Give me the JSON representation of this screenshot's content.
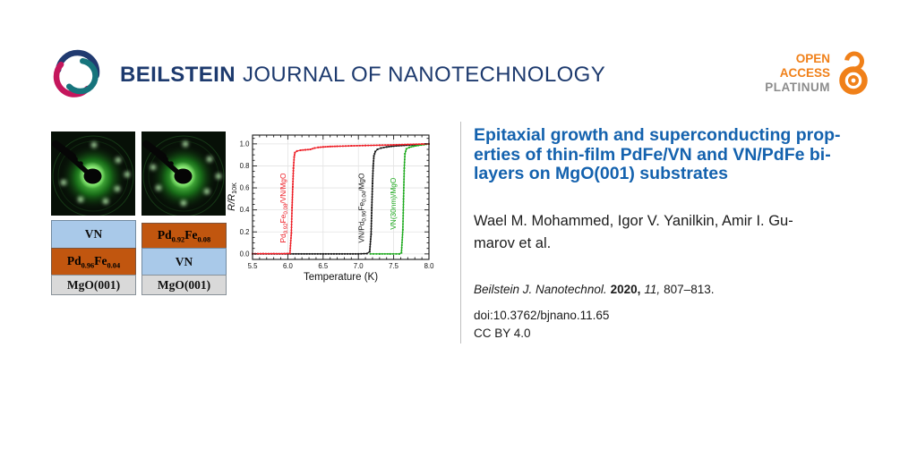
{
  "colors": {
    "brand_navy": "#1d3a6e",
    "logo_teal": "#16747c",
    "logo_crimson": "#c4165c",
    "oa_orange": "#f08019",
    "oa_gray": "#8c8c8c",
    "title_blue": "#1462ae",
    "layer_blue": "#a9c9e9",
    "layer_orange": "#c1560f",
    "layer_gray": "#d9d9d9",
    "divider_gray": "#bfbfbf"
  },
  "header": {
    "brand_bold": "BEILSTEIN",
    "brand_rest": "JOURNAL OF NANOTECHNOLOGY",
    "badge": {
      "open": "OPEN",
      "access": "ACCESS",
      "platinum": "PLATINUM"
    }
  },
  "figure": {
    "stacks": [
      {
        "layers": [
          {
            "label": "VN"
          },
          {
            "label": "Pd_{0.96}Fe_{0.04}"
          },
          {
            "label": "MgO(001)"
          }
        ]
      },
      {
        "layers": [
          {
            "label": "Pd_{0.92}Fe_{0.08}"
          },
          {
            "label": "VN"
          },
          {
            "label": "MgO(001)"
          }
        ]
      }
    ],
    "rheed": [
      {
        "spots": [
          [
            48,
            15
          ],
          [
            75,
            32
          ],
          [
            85,
            48
          ],
          [
            74,
            64
          ],
          [
            61,
            78
          ],
          [
            33,
            76
          ],
          [
            14,
            57
          ]
        ]
      },
      {
        "spots": [
          [
            49,
            14
          ],
          [
            76,
            31
          ],
          [
            86,
            50
          ],
          [
            73,
            67
          ],
          [
            47,
            80
          ],
          [
            19,
            63
          ],
          [
            13,
            40
          ]
        ]
      }
    ]
  },
  "chart_data": {
    "type": "line",
    "title": "",
    "xlabel": "Temperature (K)",
    "ylabel": "R/R_{10K}",
    "xlim": [
      5.5,
      8.0
    ],
    "ylim": [
      -0.05,
      1.08
    ],
    "xticks": [
      5.5,
      6.0,
      6.5,
      7.0,
      7.5,
      8.0
    ],
    "yticks": [
      0.0,
      0.2,
      0.4,
      0.6,
      0.8,
      1.0
    ],
    "grid": true,
    "legend_position": "inline-rotated-labels",
    "series": [
      {
        "name": "VN/Pd_{0.96}Fe_{0.04}/MgO",
        "color": "#141414",
        "label_x": 7.08,
        "label_y": 0.1,
        "points": [
          [
            5.5,
            0.0
          ],
          [
            6.0,
            0.0
          ],
          [
            6.5,
            0.0
          ],
          [
            7.0,
            0.0
          ],
          [
            7.12,
            0.003
          ],
          [
            7.16,
            0.02
          ],
          [
            7.18,
            0.18
          ],
          [
            7.19,
            0.42
          ],
          [
            7.2,
            0.64
          ],
          [
            7.21,
            0.8
          ],
          [
            7.22,
            0.89
          ],
          [
            7.24,
            0.93
          ],
          [
            7.27,
            0.95
          ],
          [
            7.32,
            0.962
          ],
          [
            7.4,
            0.972
          ],
          [
            7.5,
            0.98
          ],
          [
            7.65,
            0.986
          ],
          [
            7.8,
            0.992
          ],
          [
            7.95,
            0.998
          ],
          [
            8.0,
            1.0
          ]
        ]
      },
      {
        "name": "VN(30nm)/MgO",
        "color": "#1faa1f",
        "label_x": 7.53,
        "label_y": 0.22,
        "points": [
          [
            7.17,
            0.0
          ],
          [
            7.3,
            0.0
          ],
          [
            7.45,
            0.0
          ],
          [
            7.58,
            0.0
          ],
          [
            7.61,
            0.01
          ],
          [
            7.63,
            0.22
          ],
          [
            7.64,
            0.5
          ],
          [
            7.65,
            0.78
          ],
          [
            7.66,
            0.91
          ],
          [
            7.68,
            0.955
          ],
          [
            7.72,
            0.968
          ],
          [
            7.78,
            0.978
          ],
          [
            7.85,
            0.986
          ],
          [
            7.93,
            0.993
          ],
          [
            8.0,
            0.999
          ]
        ]
      },
      {
        "name": "Pd_{0.92}Fe_{0.08}/VN/MgO",
        "color": "#ed1c24",
        "label_x": 5.97,
        "label_y": 0.1,
        "points": [
          [
            5.5,
            0.002
          ],
          [
            5.65,
            0.002
          ],
          [
            5.8,
            0.002
          ],
          [
            5.95,
            0.002
          ],
          [
            6.03,
            0.005
          ],
          [
            6.05,
            0.19
          ],
          [
            6.06,
            0.42
          ],
          [
            6.07,
            0.61
          ],
          [
            6.08,
            0.78
          ],
          [
            6.09,
            0.88
          ],
          [
            6.1,
            0.92
          ],
          [
            6.13,
            0.935
          ],
          [
            6.18,
            0.942
          ],
          [
            6.25,
            0.946
          ],
          [
            6.32,
            0.95
          ],
          [
            6.38,
            0.962
          ],
          [
            6.43,
            0.968
          ],
          [
            6.5,
            0.972
          ],
          [
            6.6,
            0.976
          ],
          [
            6.7,
            0.978
          ],
          [
            6.9,
            0.982
          ],
          [
            7.1,
            0.985
          ],
          [
            7.3,
            0.988
          ],
          [
            7.5,
            0.991
          ],
          [
            7.7,
            0.995
          ],
          [
            7.9,
            0.998
          ],
          [
            8.0,
            1.0
          ]
        ]
      }
    ]
  },
  "article": {
    "title_lines": [
      "Epitaxial growth and superconducting prop-",
      "erties of thin-film PdFe/VN and VN/PdFe bi-",
      "layers on MgO(001) substrates"
    ],
    "author_lines": [
      "Wael M. Mohammed, Igor V. Yanilkin, Amir I. Gu-",
      "marov et al."
    ],
    "citation": {
      "journal": "Beilstein J. Nanotechnol.",
      "year": "2020,",
      "volume": "11,",
      "pages": "807–813."
    },
    "doi": "doi:10.3762/bjnano.11.65",
    "license": "CC BY 4.0"
  }
}
